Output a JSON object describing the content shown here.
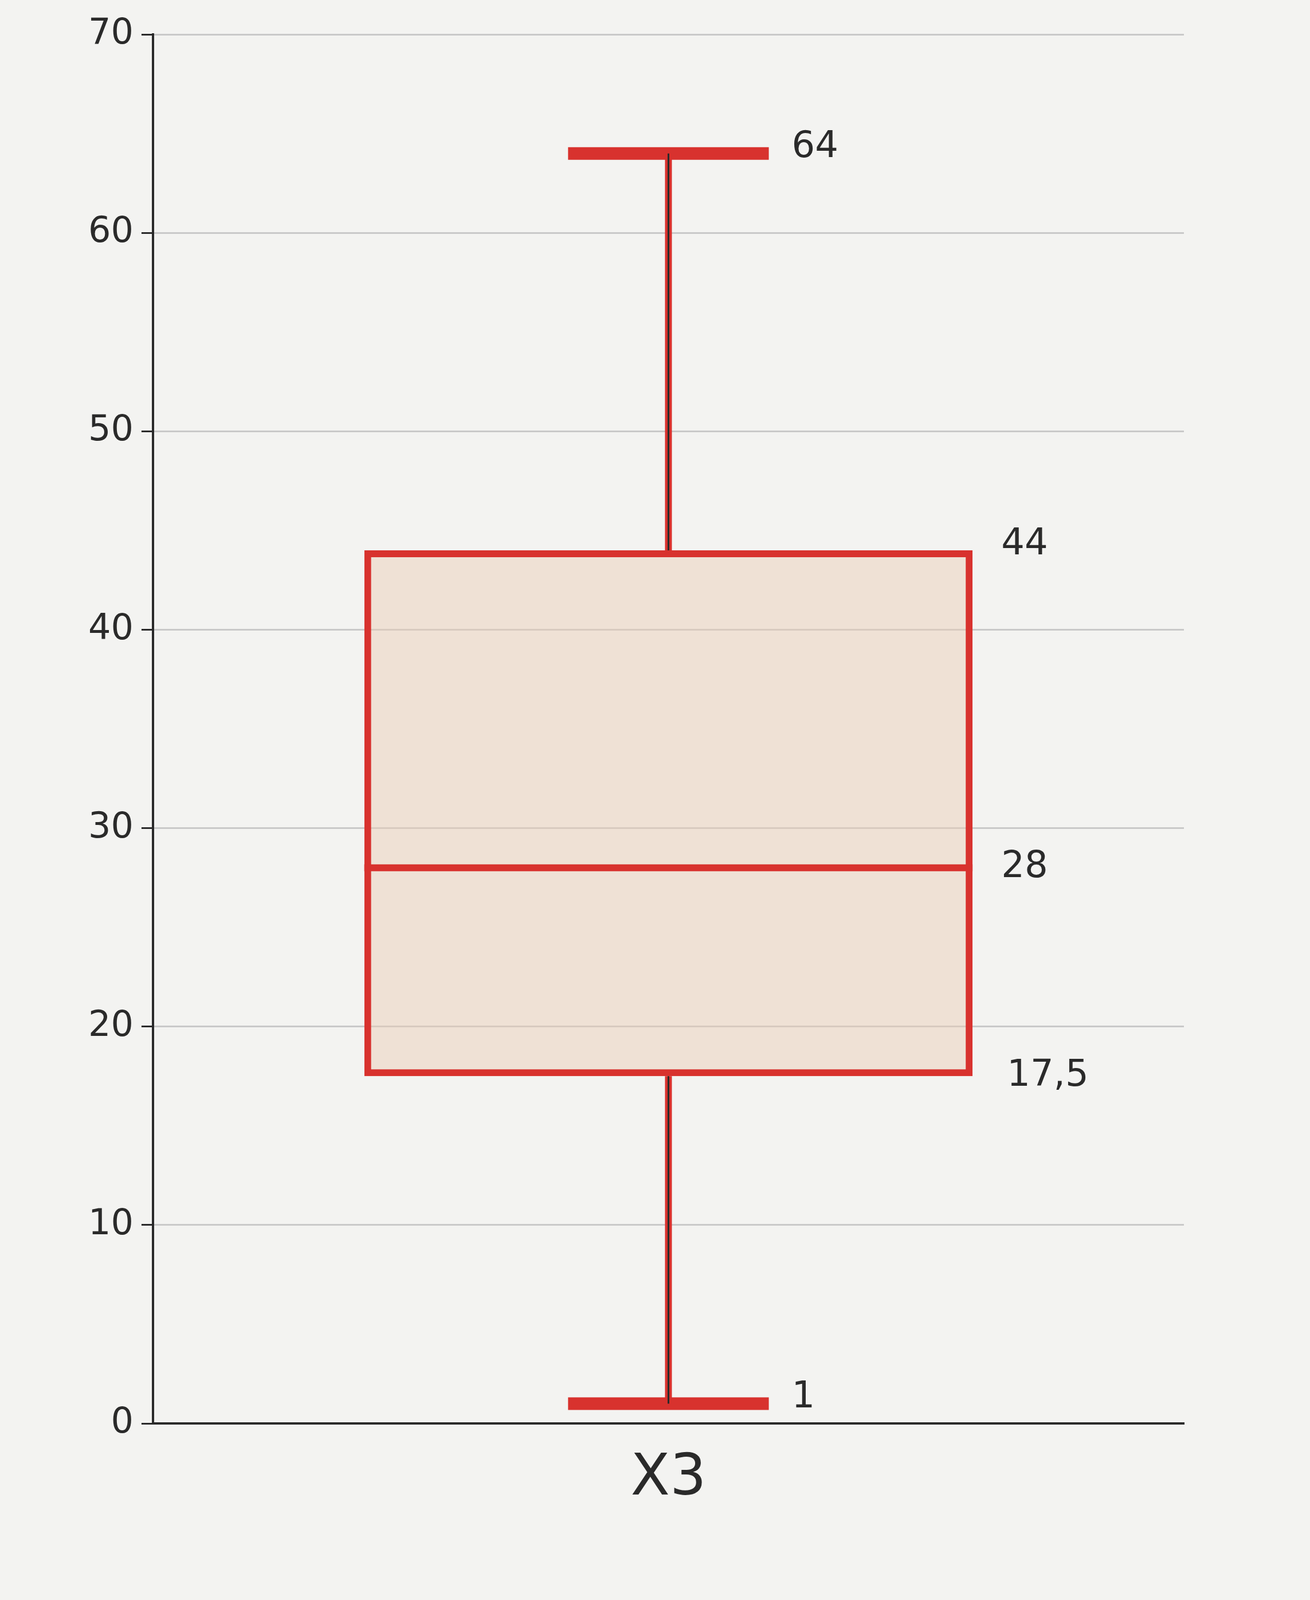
{
  "chart_data": {
    "type": "box",
    "categories": [
      "X3"
    ],
    "boxes": [
      {
        "name": "X3",
        "min": 1,
        "q1": 17.5,
        "median": 28,
        "q3": 44,
        "max": 64,
        "value_labels": {
          "min": "1",
          "q1": "17,5",
          "median": "28",
          "q3": "44",
          "max": "64"
        }
      }
    ],
    "color": "#d8322e",
    "ylim": [
      0,
      70
    ],
    "yticks": [
      0,
      10,
      20,
      30,
      40,
      50,
      60,
      70
    ],
    "grid": true,
    "data_labels": true
  }
}
